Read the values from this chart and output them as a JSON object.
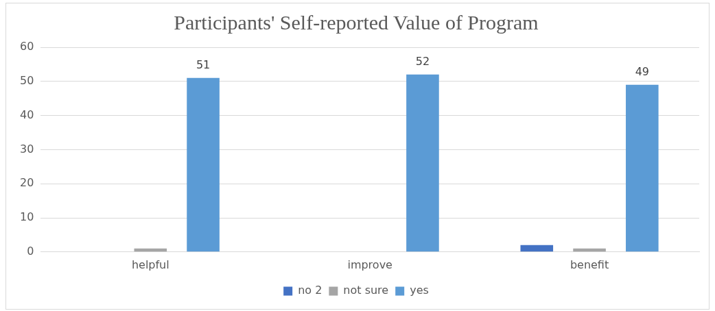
{
  "chart_data": {
    "type": "bar",
    "title": "Participants' Self-reported Value of Program",
    "categories": [
      "helpful",
      "improve",
      "benefit"
    ],
    "series": [
      {
        "name": "no 2",
        "color": "#4472c4",
        "values": [
          0,
          0,
          2
        ]
      },
      {
        "name": "not sure",
        "color": "#a5a5a5",
        "values": [
          1,
          0,
          1
        ]
      },
      {
        "name": "yes",
        "color": "#5b9bd5",
        "values": [
          51,
          52,
          49
        ],
        "value_labels": [
          "51",
          "52",
          "49"
        ]
      }
    ],
    "ylim": [
      0,
      60
    ],
    "yticks": [
      0,
      10,
      20,
      30,
      40,
      50,
      60
    ],
    "grid": "y",
    "legend": "bottom"
  }
}
